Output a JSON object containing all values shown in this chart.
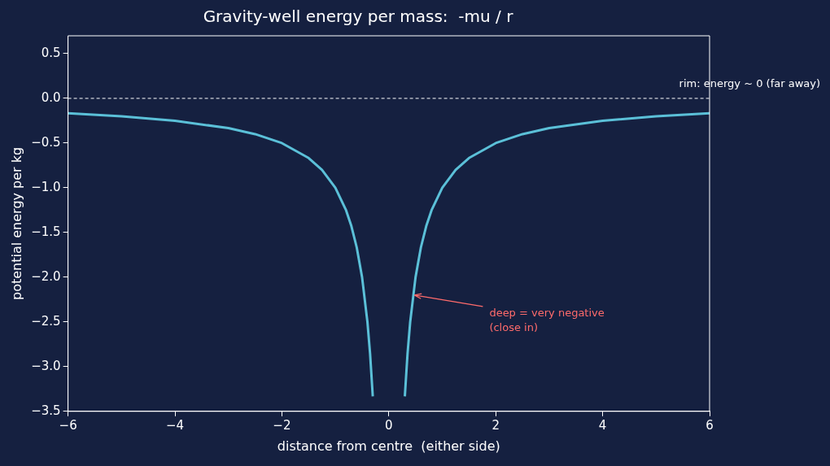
{
  "chart_data": {
    "type": "line",
    "title": "Gravity-well energy per mass:  -mu / r",
    "xlabel": "distance from centre  (either side)",
    "ylabel": "potential energy per kg",
    "xlim": [
      -6,
      6
    ],
    "xticks": [
      {
        "value": -6,
        "label": "−6"
      },
      {
        "value": -4,
        "label": "−4"
      },
      {
        "value": -2,
        "label": "−2"
      },
      0,
      2,
      4,
      6
    ],
    "ylim": [
      -3.5,
      0.7
    ],
    "yticks": [
      {
        "value": -3.5,
        "label": "−3.5"
      },
      {
        "value": -3,
        "label": "−3.0"
      },
      {
        "value": -2.5,
        "label": "−2.5"
      },
      {
        "value": -2,
        "label": "−2.0"
      },
      {
        "value": -1.5,
        "label": "−1.5"
      },
      {
        "value": -1,
        "label": "−1.0"
      },
      {
        "value": -0.5,
        "label": "−0.5"
      },
      {
        "value": 0,
        "label": "0.0"
      },
      {
        "value": 0.5,
        "label": "0.5"
      }
    ],
    "grid": false,
    "legend": false,
    "marker": "none",
    "line_style": "solid",
    "series": [
      {
        "color": "#5bc0d8",
        "x": [
          -6,
          -5,
          -4,
          -3,
          -2.5,
          -2,
          -1.5,
          -1.25,
          -1,
          -0.8,
          -0.7,
          -0.6,
          -0.5,
          -0.4,
          -0.35,
          -0.3,
          0,
          0.3,
          0.35,
          0.4,
          0.5,
          0.6,
          0.7,
          0.8,
          1,
          1.25,
          1.5,
          2,
          2.5,
          3,
          4,
          5,
          6
        ],
        "values": [
          -0.167,
          -0.2,
          -0.25,
          -0.333,
          -0.4,
          -0.5,
          -0.667,
          -0.8,
          -1,
          -1.25,
          -1.429,
          -1.667,
          -2,
          -2.5,
          -2.857,
          -3.333,
          null,
          -3.333,
          -2.857,
          -2.5,
          -2,
          -1.667,
          -1.429,
          -1.25,
          -1,
          -0.8,
          -0.667,
          -0.5,
          -0.4,
          -0.333,
          -0.25,
          -0.2,
          -0.167
        ]
      }
    ],
    "ref_lines": [
      {
        "axis": "y",
        "value": 0,
        "label": "rim: energy ~ 0 (far away)",
        "color": "#ffffff",
        "line_style": "dashed"
      }
    ],
    "annotations": [
      {
        "text": "deep = very negative\n(close in)",
        "x": 0.45,
        "y": -2.2
      }
    ]
  }
}
